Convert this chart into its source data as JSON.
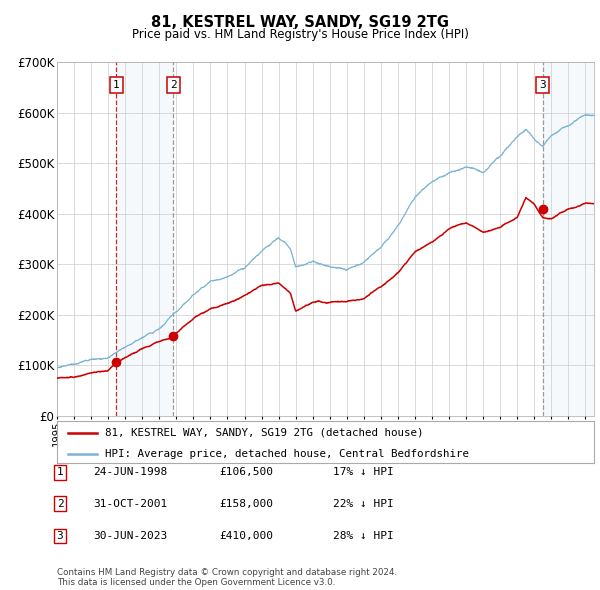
{
  "title": "81, KESTREL WAY, SANDY, SG19 2TG",
  "subtitle": "Price paid vs. HM Land Registry's House Price Index (HPI)",
  "ylim": [
    0,
    700000
  ],
  "yticks": [
    0,
    100000,
    200000,
    300000,
    400000,
    500000,
    600000,
    700000
  ],
  "ytick_labels": [
    "£0",
    "£100K",
    "£200K",
    "£300K",
    "£400K",
    "£500K",
    "£600K",
    "£700K"
  ],
  "hpi_color": "#7ab3d4",
  "price_color": "#cc0000",
  "background_color": "#ffffff",
  "grid_color": "#cccccc",
  "sale_dates": [
    1998.48,
    2001.83,
    2023.5
  ],
  "sale_prices": [
    106500,
    158000,
    410000
  ],
  "sale_labels": [
    "1",
    "2",
    "3"
  ],
  "legend_price_label": "81, KESTREL WAY, SANDY, SG19 2TG (detached house)",
  "legend_hpi_label": "HPI: Average price, detached house, Central Bedfordshire",
  "table_rows": [
    {
      "num": "1",
      "date": "24-JUN-1998",
      "price": "£106,500",
      "pct": "17% ↓ HPI"
    },
    {
      "num": "2",
      "date": "31-OCT-2001",
      "price": "£158,000",
      "pct": "22% ↓ HPI"
    },
    {
      "num": "3",
      "date": "30-JUN-2023",
      "price": "£410,000",
      "pct": "28% ↓ HPI"
    }
  ],
  "footer": "Contains HM Land Registry data © Crown copyright and database right 2024.\nThis data is licensed under the Open Government Licence v3.0.",
  "xmin": 1995.0,
  "xmax": 2026.5,
  "hpi_ctrl": [
    [
      1995.0,
      95000
    ],
    [
      1996.0,
      100000
    ],
    [
      1997.0,
      108000
    ],
    [
      1998.0,
      112000
    ],
    [
      1999.0,
      130000
    ],
    [
      2000.0,
      150000
    ],
    [
      2001.0,
      170000
    ],
    [
      2002.0,
      200000
    ],
    [
      2003.0,
      235000
    ],
    [
      2004.0,
      268000
    ],
    [
      2005.0,
      278000
    ],
    [
      2006.0,
      298000
    ],
    [
      2007.0,
      328000
    ],
    [
      2008.0,
      352000
    ],
    [
      2008.7,
      330000
    ],
    [
      2009.0,
      295000
    ],
    [
      2010.0,
      308000
    ],
    [
      2011.0,
      292000
    ],
    [
      2012.0,
      287000
    ],
    [
      2013.0,
      305000
    ],
    [
      2014.0,
      338000
    ],
    [
      2015.0,
      385000
    ],
    [
      2016.0,
      440000
    ],
    [
      2017.0,
      472000
    ],
    [
      2018.0,
      492000
    ],
    [
      2019.0,
      502000
    ],
    [
      2020.0,
      492000
    ],
    [
      2021.0,
      522000
    ],
    [
      2022.0,
      562000
    ],
    [
      2022.5,
      578000
    ],
    [
      2023.0,
      562000
    ],
    [
      2023.5,
      548000
    ],
    [
      2024.0,
      568000
    ],
    [
      2025.0,
      588000
    ],
    [
      2026.0,
      608000
    ]
  ],
  "price_ctrl": [
    [
      1995.0,
      75000
    ],
    [
      1996.0,
      78000
    ],
    [
      1997.0,
      85000
    ],
    [
      1998.0,
      90000
    ],
    [
      1998.48,
      106500
    ],
    [
      1999.0,
      115000
    ],
    [
      2000.0,
      135000
    ],
    [
      2001.0,
      150000
    ],
    [
      2001.83,
      158000
    ],
    [
      2002.0,
      168000
    ],
    [
      2003.0,
      198000
    ],
    [
      2004.0,
      218000
    ],
    [
      2005.0,
      232000
    ],
    [
      2006.0,
      248000
    ],
    [
      2007.0,
      268000
    ],
    [
      2008.0,
      272000
    ],
    [
      2008.7,
      252000
    ],
    [
      2009.0,
      218000
    ],
    [
      2010.0,
      238000
    ],
    [
      2011.0,
      238000
    ],
    [
      2012.0,
      242000
    ],
    [
      2013.0,
      248000
    ],
    [
      2014.0,
      268000
    ],
    [
      2015.0,
      298000
    ],
    [
      2016.0,
      342000
    ],
    [
      2017.0,
      362000
    ],
    [
      2018.0,
      388000
    ],
    [
      2019.0,
      398000
    ],
    [
      2020.0,
      382000
    ],
    [
      2021.0,
      392000
    ],
    [
      2022.0,
      412000
    ],
    [
      2022.5,
      452000
    ],
    [
      2023.0,
      438000
    ],
    [
      2023.5,
      410000
    ],
    [
      2024.0,
      408000
    ],
    [
      2025.0,
      428000
    ],
    [
      2026.0,
      438000
    ]
  ]
}
